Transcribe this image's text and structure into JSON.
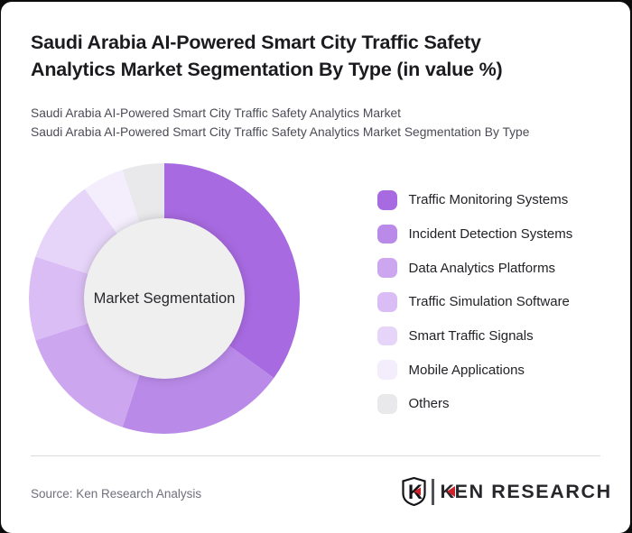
{
  "page": {
    "title_line1": "Saudi Arabia AI-Powered Smart City Traffic Safety",
    "title_line2": "Analytics Market Segmentation By Type (in value %)",
    "subtitle_line1": "Saudi Arabia AI-Powered Smart City Traffic Safety Analytics Market",
    "subtitle_line2": "Saudi Arabia AI-Powered Smart City Traffic Safety Analytics Market Segmentation By Type"
  },
  "chart_data": {
    "type": "pie",
    "variant": "donut",
    "title": "Saudi Arabia AI-Powered Smart City Traffic Safety Analytics Market Segmentation By Type (in value %)",
    "unit": "value %",
    "center_label": "Market Segmentation",
    "start_angle_deg": 0,
    "direction": "clockwise",
    "legend_position": "right",
    "hole_color": "#f0eff0",
    "segments": [
      {
        "label": "Traffic Monitoring Systems",
        "value": 35,
        "color": "#a86ae1"
      },
      {
        "label": "Incident Detection Systems",
        "value": 20,
        "color": "#b98ae8"
      },
      {
        "label": "Data Analytics Platforms",
        "value": 15,
        "color": "#cda6f0"
      },
      {
        "label": "Traffic Simulation Software",
        "value": 10,
        "color": "#d9bdf4"
      },
      {
        "label": "Smart Traffic Signals",
        "value": 10,
        "color": "#e6d5f8"
      },
      {
        "label": "Mobile Applications",
        "value": 5,
        "color": "#f3edfc"
      },
      {
        "label": "Others",
        "value": 5,
        "color": "#e9e9eb"
      }
    ]
  },
  "footer": {
    "source": "Source: Ken Research Analysis",
    "logo": {
      "shield_letter": "K",
      "brand_first_letter": "K",
      "brand_rest": "EN RESEARCH",
      "accent_color": "#cc2229"
    }
  }
}
